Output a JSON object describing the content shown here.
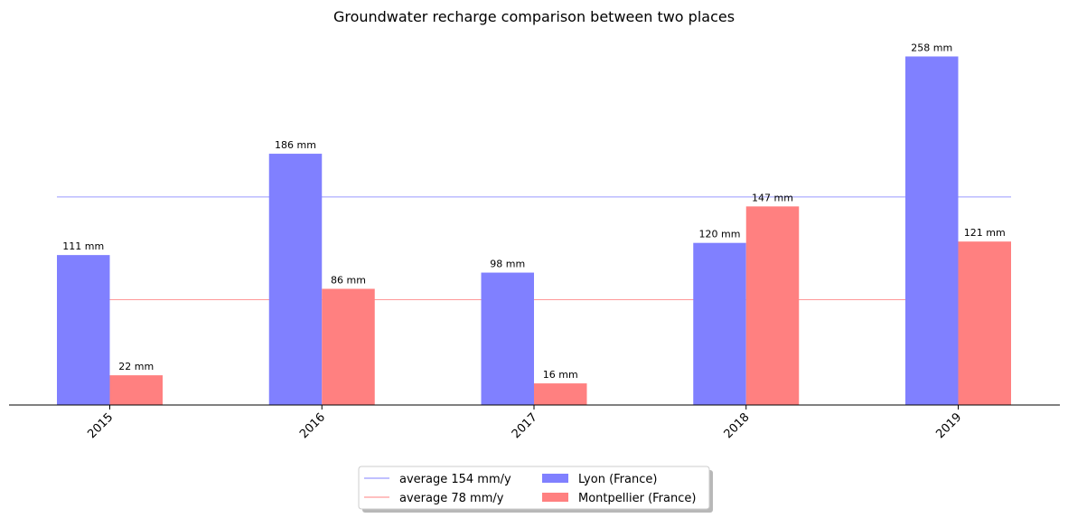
{
  "chart_data": {
    "type": "bar",
    "title": "Groundwater recharge comparison between two places",
    "xlabel": "",
    "ylabel": "",
    "categories": [
      "2015",
      "2016",
      "2017",
      "2018",
      "2019"
    ],
    "series": [
      {
        "name": "Lyon (France)",
        "color": "#8080ff",
        "values": [
          111,
          186,
          98,
          120,
          258
        ],
        "labels": [
          "111 mm",
          "186 mm",
          "98 mm",
          "120 mm",
          "258 mm"
        ]
      },
      {
        "name": "Montpellier (France)",
        "color": "#ff8080",
        "values": [
          22,
          86,
          16,
          147,
          121
        ],
        "labels": [
          "22 mm",
          "86 mm",
          "16 mm",
          "147 mm",
          "121 mm"
        ]
      }
    ],
    "reference_lines": [
      {
        "label": "average 154 mm/y",
        "value": 154,
        "color": "#8080ff"
      },
      {
        "label": "average 78 mm/y",
        "value": 78,
        "color": "#ff8080"
      }
    ],
    "ylim": [
      0,
      265
    ],
    "y_axis_visible": false,
    "grid": false,
    "legend_position": "bottom-center"
  }
}
